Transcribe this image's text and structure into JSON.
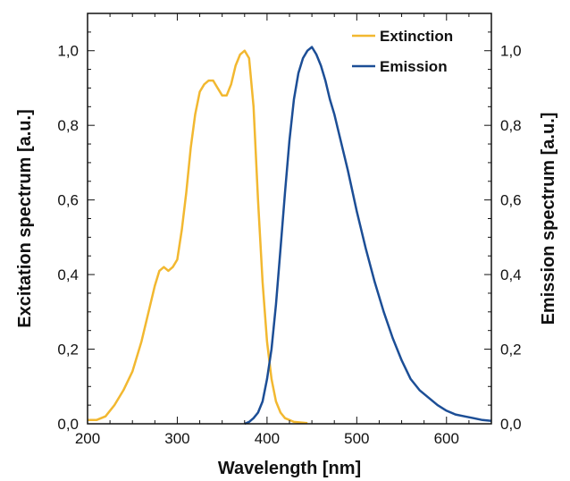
{
  "chart_data": {
    "type": "line",
    "xlabel": "Wavelength [nm]",
    "ylabel": "Excitation spectrum [a.u.]",
    "y2label": "Emission spectrum [a.u.]",
    "xlim": [
      200,
      650
    ],
    "ylim": [
      0,
      1.1
    ],
    "y2lim": [
      0,
      1.1
    ],
    "x_ticks": [
      200,
      300,
      400,
      500,
      600
    ],
    "x_tick_labels": [
      "200",
      "300",
      "400",
      "500",
      "600"
    ],
    "y_ticks": [
      0,
      0.2,
      0.4,
      0.6,
      0.8,
      1.0
    ],
    "y_tick_labels": [
      "0,0",
      "0,2",
      "0,4",
      "0,6",
      "0,8",
      "1,0"
    ],
    "grid": false,
    "legend_position": "top-right",
    "series": [
      {
        "name": "Extinction",
        "color": "#f2b830",
        "axis": "left",
        "x": [
          200,
          210,
          220,
          230,
          240,
          250,
          260,
          270,
          275,
          280,
          285,
          290,
          295,
          300,
          305,
          310,
          315,
          320,
          325,
          330,
          335,
          340,
          345,
          350,
          355,
          360,
          365,
          370,
          375,
          380,
          385,
          390,
          395,
          400,
          405,
          410,
          415,
          420,
          430,
          445
        ],
        "values": [
          0.01,
          0.01,
          0.02,
          0.05,
          0.09,
          0.14,
          0.22,
          0.32,
          0.37,
          0.41,
          0.42,
          0.41,
          0.42,
          0.44,
          0.52,
          0.62,
          0.74,
          0.83,
          0.89,
          0.91,
          0.92,
          0.92,
          0.9,
          0.88,
          0.88,
          0.91,
          0.96,
          0.99,
          1.0,
          0.98,
          0.85,
          0.6,
          0.38,
          0.22,
          0.12,
          0.06,
          0.03,
          0.015,
          0.005,
          0.002
        ]
      },
      {
        "name": "Emission",
        "color": "#1c4e96",
        "axis": "right",
        "x": [
          375,
          380,
          385,
          390,
          395,
          400,
          405,
          410,
          415,
          420,
          425,
          430,
          435,
          440,
          445,
          450,
          455,
          460,
          465,
          470,
          475,
          480,
          490,
          500,
          510,
          520,
          530,
          540,
          550,
          560,
          570,
          580,
          590,
          600,
          610,
          620,
          630,
          640,
          650
        ],
        "values": [
          0.0,
          0.005,
          0.015,
          0.03,
          0.06,
          0.12,
          0.2,
          0.32,
          0.47,
          0.62,
          0.76,
          0.87,
          0.94,
          0.98,
          1.0,
          1.01,
          0.99,
          0.96,
          0.92,
          0.87,
          0.83,
          0.78,
          0.68,
          0.57,
          0.47,
          0.38,
          0.3,
          0.23,
          0.17,
          0.12,
          0.09,
          0.07,
          0.05,
          0.035,
          0.025,
          0.02,
          0.015,
          0.01,
          0.008
        ]
      }
    ]
  }
}
